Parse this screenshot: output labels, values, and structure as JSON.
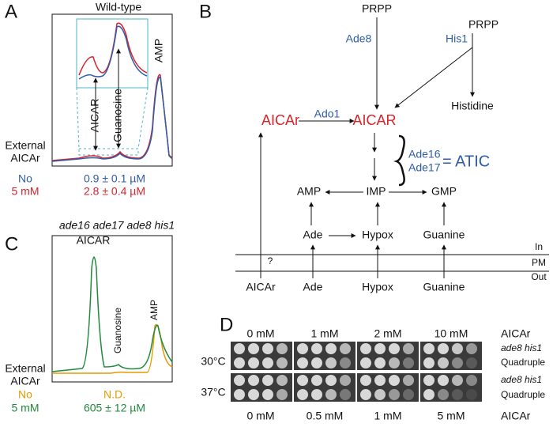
{
  "panels": {
    "A": {
      "label": "A",
      "title": "Wild-type",
      "peaks": [
        "AICAR",
        "Guanosine",
        "AMP"
      ],
      "condition_label": [
        "External",
        "AICAr"
      ],
      "rows": [
        {
          "condition": "No",
          "value": "0.9 ± 0.1 µM"
        },
        {
          "condition": "5 mM",
          "value": "2.8 ± 0.4 µM"
        }
      ]
    },
    "B": {
      "label": "B",
      "nodes": [
        "PRPP",
        "PRPP",
        "Ade8",
        "His1",
        "Histidine",
        "AICAr",
        "Ado1",
        "AICAR",
        "Ade16",
        "Ade17",
        "= ATIC",
        "AMP",
        "IMP",
        "GMP",
        "Ade",
        "Hypox",
        "Guanine",
        "AICAr",
        "Ade",
        "Hypox",
        "Guanine"
      ],
      "membrane": [
        "In",
        "PM",
        "Out"
      ],
      "unknown_transport": "?"
    },
    "C": {
      "label": "C",
      "title": "ade16 ade17 ade8 his1",
      "peaks": [
        "AICAR",
        "Guanosine",
        "AMP"
      ],
      "condition_label": [
        "External",
        "AICAr"
      ],
      "rows": [
        {
          "condition": "No",
          "value": "N.D."
        },
        {
          "condition": "5 mM",
          "value": "605 ± 12 µM"
        }
      ]
    },
    "D": {
      "label": "D",
      "top_concentrations": [
        "0 mM",
        "1 mM",
        "2 mM",
        "10 mM"
      ],
      "top_unit": "AICAr",
      "bottom_concentrations": [
        "0 mM",
        "0.5 mM",
        "1 mM",
        "5 mM"
      ],
      "bottom_unit": "AICAr",
      "temperatures": [
        "30°C",
        "37°C"
      ],
      "strains": [
        "ade8 his1",
        "Quadruple",
        "ade8 his1",
        "Quadruple"
      ]
    }
  }
}
